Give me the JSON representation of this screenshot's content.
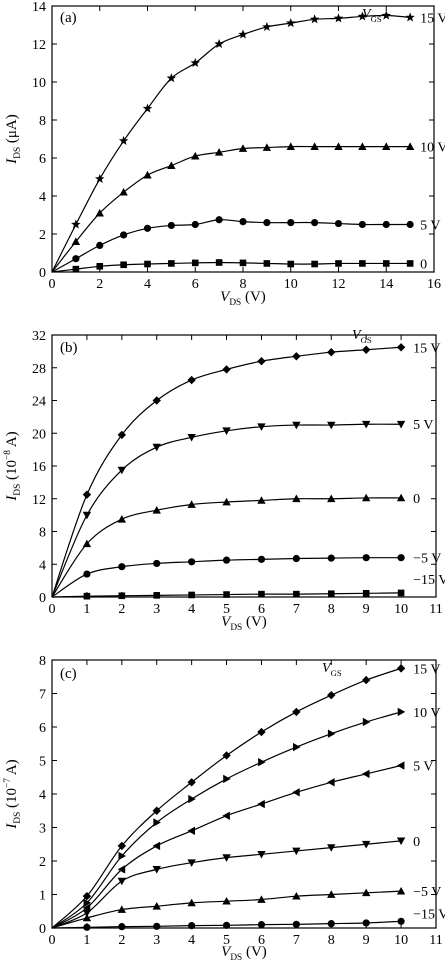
{
  "chart_data": [
    {
      "type": "line",
      "panel_label": "(a)",
      "ylabel": "I_DS (μA)",
      "ylabel_main": "I",
      "ylabel_sub": "DS",
      "ylabel_rest": " (μA)",
      "xlabel_main": "V",
      "xlabel_sub": "DS",
      "xlabel_rest": " (V)",
      "xlim": [
        0,
        16
      ],
      "ylim": [
        0,
        14
      ],
      "xticks": [
        0,
        2,
        4,
        6,
        8,
        10,
        12,
        14,
        16
      ],
      "yticks": [
        0,
        2,
        4,
        6,
        8,
        10,
        12,
        14
      ],
      "legend_title_main": "V",
      "legend_title_sub": "GS",
      "series": [
        {
          "name": "15 V",
          "marker": "star",
          "x": [
            1,
            2,
            3,
            4,
            5,
            6,
            7,
            8,
            9,
            10,
            11,
            12,
            13,
            14,
            15
          ],
          "y": [
            2.5,
            4.9,
            6.9,
            8.6,
            10.2,
            11.0,
            12.0,
            12.5,
            12.9,
            13.1,
            13.3,
            13.35,
            13.45,
            13.5,
            13.4
          ]
        },
        {
          "name": "10 V",
          "marker": "triangle",
          "x": [
            1,
            2,
            3,
            4,
            5,
            6,
            7,
            8,
            9,
            10,
            11,
            12,
            13,
            14,
            15
          ],
          "y": [
            1.6,
            3.1,
            4.2,
            5.1,
            5.6,
            6.1,
            6.3,
            6.5,
            6.55,
            6.6,
            6.6,
            6.6,
            6.6,
            6.6,
            6.6
          ]
        },
        {
          "name": "5 V",
          "marker": "circle",
          "x": [
            1,
            2,
            3,
            4,
            5,
            6,
            7,
            8,
            9,
            10,
            11,
            12,
            13,
            14,
            15
          ],
          "y": [
            0.7,
            1.4,
            1.95,
            2.3,
            2.45,
            2.5,
            2.75,
            2.65,
            2.6,
            2.6,
            2.6,
            2.55,
            2.5,
            2.5,
            2.5
          ]
        },
        {
          "name": "0",
          "marker": "square",
          "x": [
            1,
            2,
            3,
            4,
            5,
            6,
            7,
            8,
            9,
            10,
            11,
            12,
            13,
            14,
            15
          ],
          "y": [
            0.15,
            0.3,
            0.38,
            0.42,
            0.45,
            0.48,
            0.5,
            0.48,
            0.45,
            0.42,
            0.42,
            0.45,
            0.45,
            0.45,
            0.45
          ]
        }
      ]
    },
    {
      "type": "line",
      "panel_label": "(b)",
      "ylabel": "I_DS (10^-8 A)",
      "ylabel_main": "I",
      "ylabel_sub": "DS",
      "ylabel_rest": " (10",
      "ylabel_sup": "−8",
      "ylabel_tail": " A)",
      "xlabel_main": "V",
      "xlabel_sub": "DS",
      "xlabel_rest": " (V)",
      "xlim": [
        0,
        11
      ],
      "ylim": [
        0,
        32
      ],
      "xticks": [
        0,
        1,
        2,
        3,
        4,
        5,
        6,
        7,
        8,
        9,
        10,
        11
      ],
      "yticks": [
        0,
        4,
        8,
        12,
        16,
        20,
        24,
        28,
        32
      ],
      "legend_title_main": "V",
      "legend_title_sub": "GS",
      "series": [
        {
          "name": "15 V",
          "marker": "diamond",
          "x": [
            1,
            2,
            3,
            4,
            5,
            6,
            7,
            8,
            9,
            10
          ],
          "y": [
            12.5,
            19.8,
            24.0,
            26.5,
            27.8,
            28.8,
            29.4,
            29.9,
            30.2,
            30.5
          ]
        },
        {
          "name": "5 V",
          "marker": "triangle-down",
          "x": [
            1,
            2,
            3,
            4,
            5,
            6,
            7,
            8,
            9,
            10
          ],
          "y": [
            10.0,
            15.5,
            18.3,
            19.5,
            20.3,
            20.8,
            21.0,
            21.0,
            21.1,
            21.1
          ]
        },
        {
          "name": "0",
          "marker": "triangle",
          "x": [
            1,
            2,
            3,
            4,
            5,
            6,
            7,
            8,
            9,
            10
          ],
          "y": [
            6.5,
            9.5,
            10.6,
            11.3,
            11.6,
            11.8,
            12.0,
            12.0,
            12.1,
            12.1
          ]
        },
        {
          "name": "−5 V",
          "marker": "circle",
          "x": [
            1,
            2,
            3,
            4,
            5,
            6,
            7,
            8,
            9,
            10
          ],
          "y": [
            2.8,
            3.7,
            4.1,
            4.3,
            4.5,
            4.6,
            4.7,
            4.75,
            4.8,
            4.8
          ]
        },
        {
          "name": "−15 V",
          "marker": "square",
          "x": [
            1,
            2,
            3,
            4,
            5,
            6,
            7,
            8,
            9,
            10
          ],
          "y": [
            0.1,
            0.15,
            0.2,
            0.25,
            0.3,
            0.35,
            0.35,
            0.4,
            0.45,
            0.5
          ]
        }
      ]
    },
    {
      "type": "line",
      "panel_label": "(c)",
      "ylabel": "I_DS (10^-7 A)",
      "ylabel_main": "I",
      "ylabel_sub": "DS",
      "ylabel_rest": " (10",
      "ylabel_sup": "−7",
      "ylabel_tail": " A)",
      "xlabel_main": "V",
      "xlabel_sub": "DS",
      "xlabel_rest": " (V)",
      "xlim": [
        0,
        11
      ],
      "ylim": [
        0,
        8
      ],
      "xticks": [
        0,
        1,
        2,
        3,
        4,
        5,
        6,
        7,
        8,
        9,
        10,
        11
      ],
      "yticks": [
        0,
        1,
        2,
        3,
        4,
        5,
        6,
        7,
        8
      ],
      "legend_title_main": "V",
      "legend_title_sub": "GS",
      "series": [
        {
          "name": "15 V",
          "marker": "diamond",
          "x": [
            1,
            2,
            3,
            4,
            5,
            6,
            7,
            8,
            9,
            10
          ],
          "y": [
            0.95,
            2.45,
            3.5,
            4.35,
            5.15,
            5.85,
            6.45,
            6.95,
            7.4,
            7.75
          ]
        },
        {
          "name": "10 V",
          "marker": "triangle-right",
          "x": [
            1,
            2,
            3,
            4,
            5,
            6,
            7,
            8,
            9,
            10
          ],
          "y": [
            0.75,
            2.15,
            3.15,
            3.85,
            4.45,
            4.95,
            5.4,
            5.8,
            6.15,
            6.45
          ]
        },
        {
          "name": "5 V",
          "marker": "triangle-left",
          "x": [
            1,
            2,
            3,
            4,
            5,
            6,
            7,
            8,
            9,
            10
          ],
          "y": [
            0.6,
            1.75,
            2.45,
            2.9,
            3.35,
            3.7,
            4.05,
            4.35,
            4.6,
            4.85
          ]
        },
        {
          "name": "0",
          "marker": "triangle-down",
          "x": [
            1,
            2,
            3,
            4,
            5,
            6,
            7,
            8,
            9,
            10
          ],
          "y": [
            0.45,
            1.4,
            1.75,
            1.95,
            2.1,
            2.2,
            2.3,
            2.4,
            2.5,
            2.6
          ]
        },
        {
          "name": "−5 V",
          "marker": "triangle",
          "x": [
            1,
            2,
            3,
            4,
            5,
            6,
            7,
            8,
            9,
            10
          ],
          "y": [
            0.3,
            0.55,
            0.65,
            0.75,
            0.8,
            0.85,
            0.95,
            1.0,
            1.05,
            1.1
          ]
        },
        {
          "name": "−15 V",
          "marker": "circle",
          "x": [
            1,
            2,
            3,
            4,
            5,
            6,
            7,
            8,
            9,
            10
          ],
          "y": [
            0.02,
            0.04,
            0.05,
            0.07,
            0.08,
            0.1,
            0.11,
            0.13,
            0.15,
            0.2
          ]
        }
      ]
    }
  ]
}
